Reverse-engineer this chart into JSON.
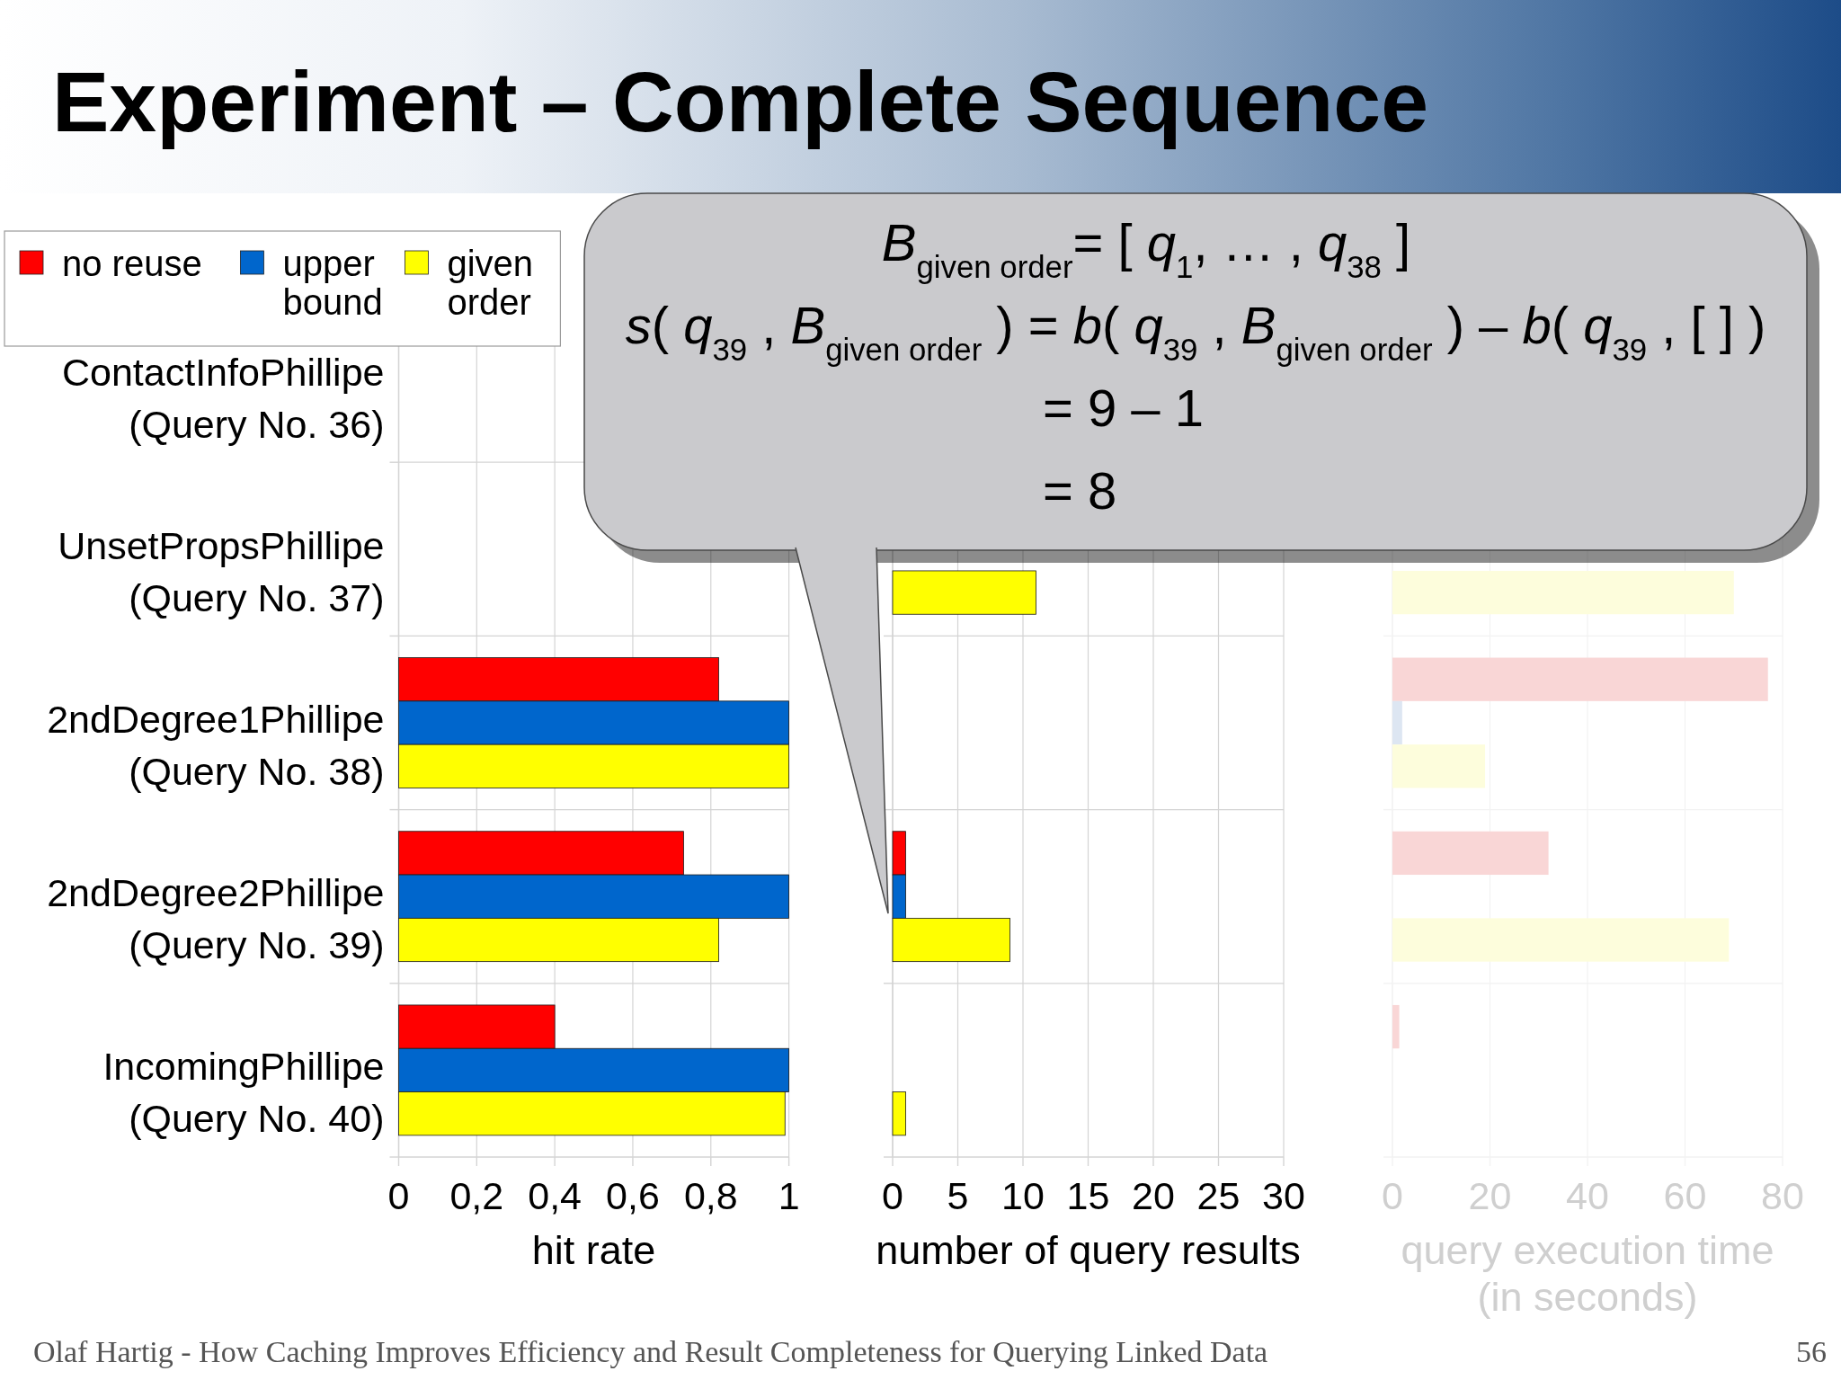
{
  "chart_data": [
    {
      "type": "bar",
      "orientation": "horizontal",
      "title": "Experiment – Complete Sequence",
      "xlabel": "hit rate",
      "categories": [
        "ContactInfoPhillipe\n(Query No. 36)",
        "UnsetPropsPhillipe\n(Query No. 37)",
        "2ndDegree1Phillipe\n(Query No. 38)",
        "2ndDegree2Phillipe\n(Query No. 39)",
        "IncomingPhillipe\n(Query No. 40)"
      ],
      "series": [
        {
          "name": "no reuse",
          "color": "#ff0000",
          "values": [
            null,
            null,
            0.82,
            0.73,
            0.4
          ]
        },
        {
          "name": "upper bound",
          "color": "#0066cc",
          "values": [
            null,
            null,
            1,
            1,
            1
          ]
        },
        {
          "name": "given order",
          "color": "#ffff00",
          "values": [
            null,
            null,
            1,
            0.82,
            0.99
          ]
        }
      ],
      "xlim": [
        0,
        1
      ],
      "xticks": [
        0,
        {
          "value": 0.2,
          "label": "0,2"
        },
        {
          "value": 0.4,
          "label": "0,4"
        },
        {
          "value": 0.6,
          "label": "0,6"
        },
        {
          "value": 0.8,
          "label": "0,8"
        },
        1
      ],
      "grid": true,
      "legend": "top left",
      "annotations": [
        "Olaf Hartig - How Caching Improves Efficiency and Result Completeness for Querying Linked Data",
        "56"
      ]
    },
    {
      "type": "bar",
      "orientation": "horizontal",
      "xlabel": "number of query results",
      "categories": [
        null,
        null,
        null,
        null,
        null
      ],
      "series": [
        {
          "color": "#ff0000",
          "values": [
            null,
            null,
            null,
            1,
            null
          ]
        },
        {
          "color": "#0066cc",
          "values": [
            null,
            null,
            null,
            1,
            null
          ]
        },
        {
          "color": "#ffff00",
          "values": [
            null,
            11,
            null,
            9,
            1
          ]
        }
      ],
      "xlim": [
        0,
        30
      ],
      "xticks": [
        0,
        5,
        10,
        15,
        20,
        25,
        30
      ],
      "grid": true,
      "tick_labels": "x",
      "annotations": [
        "B$_{given order}$= [ q$_{1}$, … , q$_{38}$ ]",
        "s( q$_{39}$ , B$_{given order}$ ) = b( q$_{39}$ , B$_{given order}$ ) – b( q$_{39}$ , [ ] )",
        "= 9 – 1",
        "= 8"
      ]
    },
    {
      "type": "bar",
      "orientation": "horizontal",
      "xlabel": "query execution time\n(in seconds)",
      "categories": [
        null,
        null,
        null,
        null,
        null
      ],
      "series": [
        {
          "color": "#f9d6d6",
          "values": [
            null,
            null,
            77,
            32,
            1.4
          ]
        },
        {
          "color": "#dde6f2",
          "values": [
            null,
            null,
            2,
            null,
            null
          ]
        },
        {
          "color": "#fdfddc",
          "values": [
            null,
            70,
            19,
            69,
            null
          ]
        }
      ],
      "xlim": [
        0,
        80
      ],
      "xticks": [
        0,
        20,
        40,
        60,
        80
      ],
      "grid": true,
      "tick_labels": "x"
    }
  ]
}
